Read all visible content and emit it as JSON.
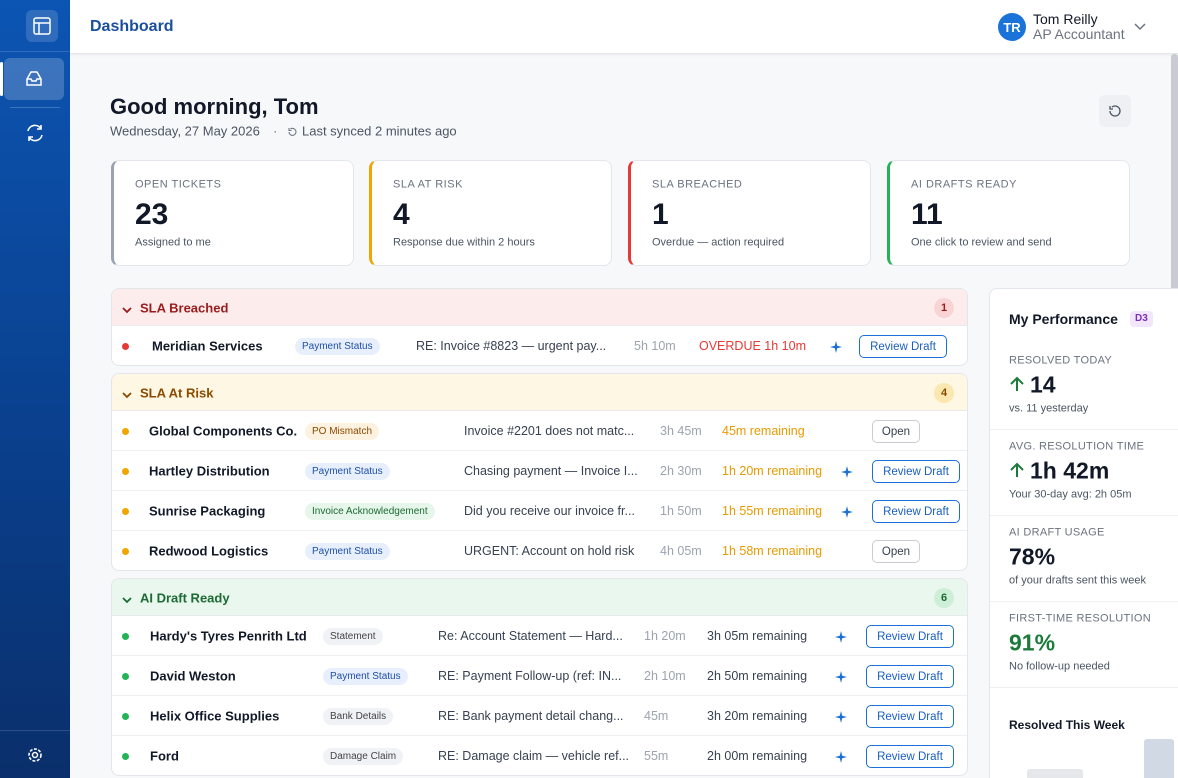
{
  "header": {
    "title": "Dashboard",
    "user": {
      "initials": "TR",
      "name": "Tom Reilly",
      "role": "AP Accountant"
    }
  },
  "greeting": {
    "title": "Good morning, Tom",
    "date": "Wednesday, 27 May 2026",
    "separator": "·",
    "sync": "Last synced 2 minutes ago"
  },
  "kpis": [
    {
      "label": "OPEN TICKETS",
      "value": 23,
      "caption": "Assigned to me"
    },
    {
      "label": "SLA AT RISK",
      "value": 4,
      "caption": "Response due within 2 hours"
    },
    {
      "label": "SLA BREACHED",
      "value": 1,
      "caption": "Overdue — action required"
    },
    {
      "label": "AI DRAFTS READY",
      "value": 11,
      "caption": "One click to review and send"
    }
  ],
  "groups": [
    {
      "title": "SLA Breached",
      "count": 1,
      "rows": [
        {
          "company": "Meridian Services",
          "tag": "Payment Status",
          "subject": "RE: Invoice #8823 — urgent pay...",
          "age": "5h 10m",
          "sla": "OVERDUE 1h 10m",
          "action": "Review Draft"
        }
      ]
    },
    {
      "title": "SLA At Risk",
      "count": 4,
      "rows": [
        {
          "company": "Global Components Co.",
          "tag": "PO Mismatch",
          "subject": "Invoice #2201 does not matc...",
          "age": "3h 45m",
          "sla": "45m remaining",
          "action": "Open"
        },
        {
          "company": "Hartley Distribution",
          "tag": "Payment Status",
          "subject": "Chasing payment — Invoice I...",
          "age": "2h 30m",
          "sla": "1h 20m remaining",
          "action": "Review Draft"
        },
        {
          "company": "Sunrise Packaging",
          "tag": "Invoice Acknowledgement",
          "subject": "Did you receive our invoice fr...",
          "age": "1h 50m",
          "sla": "1h 55m remaining",
          "action": "Review Draft"
        },
        {
          "company": "Redwood Logistics",
          "tag": "Payment Status",
          "subject": "URGENT: Account on hold risk",
          "age": "4h 05m",
          "sla": "1h 58m remaining",
          "action": "Open"
        }
      ]
    },
    {
      "title": "AI Draft Ready",
      "count": 6,
      "rows": [
        {
          "company": "Hardy's Tyres Penrith Ltd",
          "tag": "Statement",
          "subject": "Re: Account Statement — Hard...",
          "age": "1h 20m",
          "sla": "3h 05m remaining",
          "action": "Review Draft"
        },
        {
          "company": "David Weston",
          "tag": "Payment Status",
          "subject": "RE: Payment Follow-up (ref: IN...",
          "age": "2h 10m",
          "sla": "2h 50m remaining",
          "action": "Review Draft"
        },
        {
          "company": "Helix Office Supplies",
          "tag": "Bank Details",
          "subject": "RE: Bank payment detail chang...",
          "age": "45m",
          "sla": "3h 20m remaining",
          "action": "Review Draft"
        },
        {
          "company": "Ford",
          "tag": "Damage Claim",
          "subject": "RE: Damage claim — vehicle ref...",
          "age": "55m",
          "sla": "2h 00m remaining",
          "action": "Review Draft"
        }
      ]
    }
  ],
  "performance": {
    "title": "My Performance",
    "badge": "D3",
    "metrics": [
      {
        "label": "RESOLVED TODAY",
        "value": "14",
        "note": "vs. 11 yesterday"
      },
      {
        "label": "AVG. RESOLUTION TIME",
        "value": "1h 42m",
        "note": "Your 30-day avg: 2h 05m"
      },
      {
        "label": "AI DRAFT USAGE",
        "value": "78%",
        "note": "of your drafts sent this week"
      },
      {
        "label": "FIRST-TIME RESOLUTION",
        "value": "91%",
        "note": "No follow-up needed"
      }
    ],
    "chart_title": "Resolved This Week"
  }
}
